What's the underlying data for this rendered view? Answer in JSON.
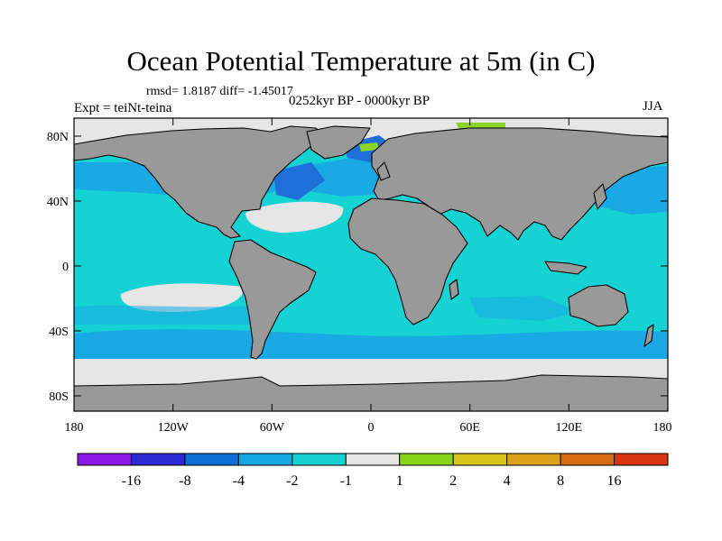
{
  "title": "Ocean Potential Temperature at 5m (in C)",
  "stats": "rmsd= 1.8187 diff= -1.45017",
  "experiment": "Expt = teiNt-teina",
  "period": "0252kyr BP - 0000kyr BP",
  "season": "JJA",
  "map": {
    "lat_labels": [
      "80N",
      "40N",
      "0",
      "40S",
      "80S"
    ],
    "lon_labels": [
      "180",
      "120W",
      "60W",
      "0",
      "60E",
      "120E",
      "180"
    ]
  },
  "colors": {
    "land": "#999999",
    "neutral": "#e6e6e6",
    "cyan": "#16d3d3",
    "light_blue": "#19a9e4",
    "mid_blue": "#1f6fd8",
    "green": "#8bd524"
  },
  "legend": {
    "boxes": [
      "#8a18e6",
      "#2c2ad4",
      "#0c70d8",
      "#15a8e3",
      "#19d0d0",
      "#e6e6e6",
      "#86d416",
      "#d6c618",
      "#dca21a",
      "#d86a12",
      "#d93512"
    ],
    "labels": [
      "-16",
      "-8",
      "-4",
      "-2",
      "-1",
      "1",
      "2",
      "4",
      "8",
      "16"
    ]
  }
}
